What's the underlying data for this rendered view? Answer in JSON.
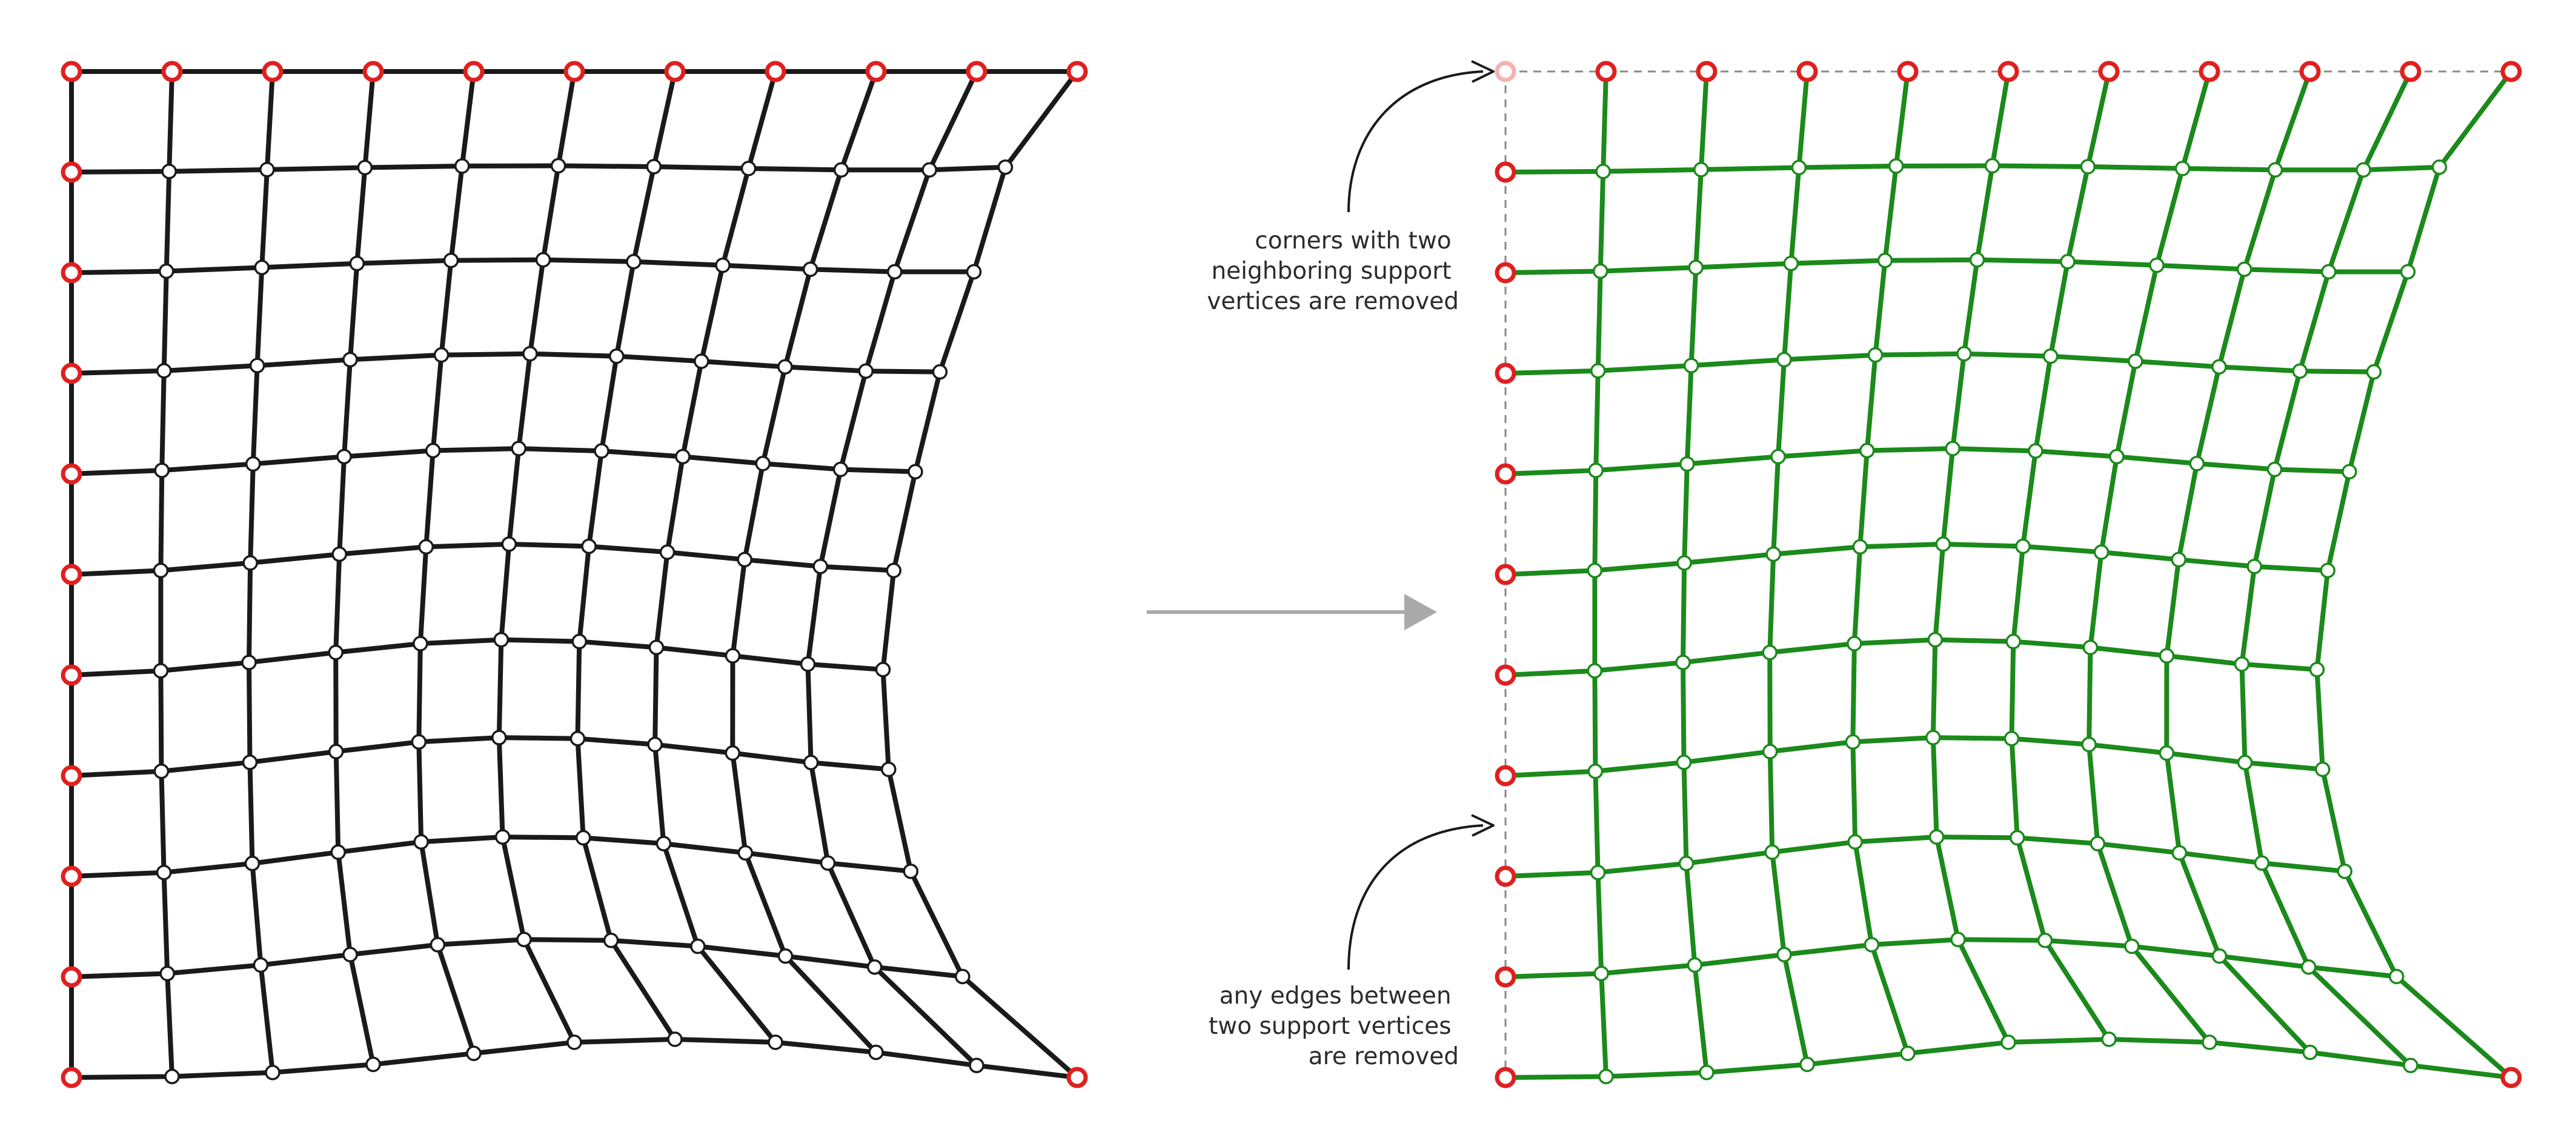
{
  "grid": {
    "rows": 11,
    "cols": 11,
    "points": [
      [
        [
          0,
          0
        ],
        [
          0.1,
          0
        ],
        [
          0.2,
          0
        ],
        [
          0.3,
          0
        ],
        [
          0.4,
          0
        ],
        [
          0.5,
          0
        ],
        [
          0.6,
          0
        ],
        [
          0.7,
          0
        ],
        [
          0.8,
          0
        ],
        [
          0.9,
          0
        ],
        [
          1,
          0
        ]
      ],
      [
        [
          0,
          0.1
        ],
        [
          0.0971,
          0.0993
        ],
        [
          0.1945,
          0.0975
        ],
        [
          0.2918,
          0.0955
        ],
        [
          0.3884,
          0.094
        ],
        [
          0.4841,
          0.0937
        ],
        [
          0.5791,
          0.0946
        ],
        [
          0.6732,
          0.0964
        ],
        [
          0.7654,
          0.0978
        ],
        [
          0.8531,
          0.0978
        ],
        [
          0.9286,
          0.0951
        ]
      ],
      [
        [
          0,
          0.2
        ],
        [
          0.0944,
          0.1985
        ],
        [
          0.1893,
          0.1948
        ],
        [
          0.2839,
          0.1908
        ],
        [
          0.3774,
          0.1878
        ],
        [
          0.469,
          0.1872
        ],
        [
          0.559,
          0.189
        ],
        [
          0.6476,
          0.1926
        ],
        [
          0.7347,
          0.1966
        ],
        [
          0.8185,
          0.1991
        ],
        [
          0.8973,
          0.1991
        ]
      ],
      [
        [
          0,
          0.3
        ],
        [
          0.092,
          0.2975
        ],
        [
          0.1847,
          0.2923
        ],
        [
          0.2771,
          0.2864
        ],
        [
          0.3678,
          0.2818
        ],
        [
          0.456,
          0.2806
        ],
        [
          0.542,
          0.283
        ],
        [
          0.6264,
          0.288
        ],
        [
          0.7096,
          0.2936
        ],
        [
          0.7899,
          0.2978
        ],
        [
          0.8635,
          0.2986
        ]
      ],
      [
        [
          0,
          0.4
        ],
        [
          0.0899,
          0.3965
        ],
        [
          0.1806,
          0.3901
        ],
        [
          0.2711,
          0.3828
        ],
        [
          0.3595,
          0.3768
        ],
        [
          0.4447,
          0.3748
        ],
        [
          0.5271,
          0.3772
        ],
        [
          0.6078,
          0.3828
        ],
        [
          0.6875,
          0.3897
        ],
        [
          0.7648,
          0.3955
        ],
        [
          0.8391,
          0.3978
        ]
      ],
      [
        [
          0,
          0.5
        ],
        [
          0.0888,
          0.496
        ],
        [
          0.1778,
          0.4885
        ],
        [
          0.2664,
          0.4798
        ],
        [
          0.3526,
          0.4725
        ],
        [
          0.4351,
          0.4698
        ],
        [
          0.5145,
          0.472
        ],
        [
          0.5925,
          0.4778
        ],
        [
          0.6694,
          0.4852
        ],
        [
          0.7447,
          0.492
        ],
        [
          0.8176,
          0.496
        ]
      ],
      [
        [
          0,
          0.6
        ],
        [
          0.0888,
          0.5957
        ],
        [
          0.1765,
          0.5874
        ],
        [
          0.2628,
          0.5775
        ],
        [
          0.3469,
          0.5687
        ],
        [
          0.4273,
          0.5648
        ],
        [
          0.505,
          0.5666
        ],
        [
          0.5816,
          0.5725
        ],
        [
          0.6575,
          0.5808
        ],
        [
          0.7322,
          0.5891
        ],
        [
          0.8069,
          0.5945
        ]
      ],
      [
        [
          0,
          0.7
        ],
        [
          0.0894,
          0.6956
        ],
        [
          0.1774,
          0.6867
        ],
        [
          0.2631,
          0.676
        ],
        [
          0.3454,
          0.6664
        ],
        [
          0.4252,
          0.6621
        ],
        [
          0.5033,
          0.6631
        ],
        [
          0.5802,
          0.669
        ],
        [
          0.6574,
          0.6775
        ],
        [
          0.7353,
          0.6869
        ],
        [
          0.8125,
          0.6937
        ]
      ],
      [
        [
          0,
          0.8
        ],
        [
          0.0919,
          0.7962
        ],
        [
          0.1798,
          0.7872
        ],
        [
          0.2652,
          0.776
        ],
        [
          0.3477,
          0.7658
        ],
        [
          0.4287,
          0.7609
        ],
        [
          0.5089,
          0.7617
        ],
        [
          0.5888,
          0.7675
        ],
        [
          0.6701,
          0.7767
        ],
        [
          0.7521,
          0.7868
        ],
        [
          0.8345,
          0.795
        ]
      ],
      [
        [
          0,
          0.9
        ],
        [
          0.0953,
          0.8966
        ],
        [
          0.1882,
          0.8882
        ],
        [
          0.2771,
          0.8778
        ],
        [
          0.3641,
          0.868
        ],
        [
          0.45,
          0.8628
        ],
        [
          0.5365,
          0.8637
        ],
        [
          0.6228,
          0.8696
        ],
        [
          0.7099,
          0.8793
        ],
        [
          0.7986,
          0.8902
        ],
        [
          0.886,
          0.8996
        ]
      ],
      [
        [
          0,
          1
        ],
        [
          0.1,
          0.999
        ],
        [
          0.2,
          0.995
        ],
        [
          0.3,
          0.987
        ],
        [
          0.4,
          0.976
        ],
        [
          0.5,
          0.965
        ],
        [
          0.6,
          0.962
        ],
        [
          0.7,
          0.965
        ],
        [
          0.8,
          0.975
        ],
        [
          0.9,
          0.988
        ],
        [
          1,
          1
        ]
      ]
    ],
    "supports": [
      [
        0,
        0
      ],
      [
        0,
        1
      ],
      [
        0,
        2
      ],
      [
        0,
        3
      ],
      [
        0,
        4
      ],
      [
        0,
        5
      ],
      [
        0,
        6
      ],
      [
        0,
        7
      ],
      [
        0,
        8
      ],
      [
        0,
        9
      ],
      [
        0,
        10
      ],
      [
        1,
        0
      ],
      [
        2,
        0
      ],
      [
        3,
        0
      ],
      [
        4,
        0
      ],
      [
        5,
        0
      ],
      [
        6,
        0
      ],
      [
        7,
        0
      ],
      [
        8,
        0
      ],
      [
        9,
        0
      ],
      [
        10,
        0
      ],
      [
        10,
        10
      ]
    ],
    "removed_corner": [
      0,
      0
    ]
  },
  "colors": {
    "left_edge": "#1a1a1a",
    "right_edge": "#1b8a1b",
    "support": "#e01f1f",
    "removed_support": "#f2b3b3",
    "node_fill": "#ffffff",
    "arrow": "#aaaaaa",
    "dashed": "#888888",
    "annotation_arrow": "#1a1a1a"
  },
  "annotations": {
    "top": [
      "corners with two",
      "neighboring support",
      "vertices are removed"
    ],
    "bottom": [
      "any edges between",
      "two support vertices",
      "are removed"
    ]
  },
  "icons": {
    "transform_arrow": "right-arrow-icon",
    "callout_arrow": "curved-arrow-icon"
  }
}
